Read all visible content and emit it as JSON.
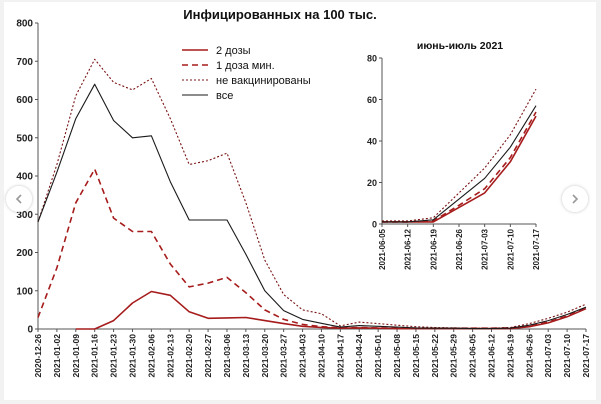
{
  "colors": {
    "dose2": "#a61c1c",
    "dose1": "#a61c1c",
    "unvaccinated": "#7a1414",
    "all": "#1a1a1a",
    "axis": "#555555",
    "grid_text": "#222222"
  },
  "nav": {
    "prev_icon": "chevron-left-icon",
    "next_icon": "chevron-right-icon"
  },
  "chart_data": [
    {
      "type": "line",
      "title": "Инфицированных на 100 тыс.",
      "xlabel": "",
      "ylabel": "",
      "ylim": [
        0,
        800
      ],
      "yticks": [
        0,
        100,
        200,
        300,
        400,
        500,
        600,
        700,
        800
      ],
      "x": [
        "2020-12-26",
        "2021-01-02",
        "2021-01-09",
        "2021-01-16",
        "2021-01-23",
        "2021-01-30",
        "2021-02-06",
        "2021-02-13",
        "2021-02-20",
        "2021-02-27",
        "2021-03-06",
        "2021-03-13",
        "2021-03-20",
        "2021-03-27",
        "2021-04-03",
        "2021-04-10",
        "2021-04-17",
        "2021-04-24",
        "2021-05-01",
        "2021-05-08",
        "2021-05-15",
        "2021-05-22",
        "2021-05-29",
        "2021-06-05",
        "2021-06-12",
        "2021-06-19",
        "2021-06-26",
        "2021-07-03",
        "2021-07-10",
        "2021-07-17"
      ],
      "grid": false,
      "legend_position": "top-right",
      "series": [
        {
          "name": "2 дозы",
          "style": "solid",
          "width": 1.6,
          "color_key": "dose2",
          "values": [
            null,
            null,
            0,
            0,
            22,
            68,
            98,
            88,
            45,
            28,
            29,
            30,
            22,
            14,
            7,
            4,
            2,
            3,
            2,
            1,
            1,
            1,
            1,
            1,
            1,
            1,
            6,
            16,
            32,
            53
          ]
        },
        {
          "name": "1 доза мин.",
          "style": "dashed",
          "width": 1.6,
          "color_key": "dose1",
          "values": [
            30,
            160,
            330,
            418,
            290,
            255,
            255,
            170,
            110,
            120,
            135,
            95,
            50,
            25,
            12,
            6,
            3,
            4,
            3,
            2,
            2,
            2,
            2,
            2,
            2,
            3,
            8,
            18,
            34,
            55
          ]
        },
        {
          "name": "не вакцинированы",
          "style": "dotted",
          "width": 1.1,
          "color_key": "unvaccinated",
          "values": [
            280,
            430,
            610,
            705,
            645,
            625,
            655,
            550,
            430,
            440,
            460,
            330,
            180,
            90,
            50,
            40,
            8,
            18,
            14,
            10,
            6,
            4,
            3,
            2,
            2,
            4,
            14,
            28,
            44,
            65
          ]
        },
        {
          "name": "все",
          "style": "solid",
          "width": 1.1,
          "color_key": "all",
          "values": [
            280,
            410,
            550,
            640,
            545,
            500,
            505,
            385,
            285,
            285,
            285,
            195,
            100,
            48,
            25,
            15,
            5,
            9,
            7,
            5,
            3,
            2,
            2,
            1,
            1,
            2,
            10,
            22,
            38,
            57
          ]
        }
      ]
    },
    {
      "type": "line",
      "title": "июнь-июль 2021",
      "xlabel": "",
      "ylabel": "",
      "ylim": [
        0,
        80
      ],
      "yticks": [
        0,
        20,
        40,
        60,
        80
      ],
      "x": [
        "2021-06-05",
        "2021-06-12",
        "2021-06-19",
        "2021-06-26",
        "2021-07-03",
        "2021-07-10",
        "2021-07-17"
      ],
      "grid": false,
      "series": [
        {
          "name": "2 дозы",
          "style": "solid",
          "width": 1.6,
          "color_key": "dose2",
          "values": [
            1,
            1,
            1,
            8,
            15,
            30,
            52
          ]
        },
        {
          "name": "1 доза мин.",
          "style": "dashed",
          "width": 1.6,
          "color_key": "dose1",
          "values": [
            1,
            1,
            1.5,
            9,
            17,
            32,
            54
          ]
        },
        {
          "name": "не вакцинированы",
          "style": "dotted",
          "width": 1.1,
          "color_key": "unvaccinated",
          "values": [
            1.5,
            1.5,
            3,
            15,
            27,
            43,
            65
          ]
        },
        {
          "name": "все",
          "style": "solid",
          "width": 1.1,
          "color_key": "all",
          "values": [
            1,
            1,
            2,
            12,
            22,
            37,
            57
          ]
        }
      ]
    }
  ]
}
